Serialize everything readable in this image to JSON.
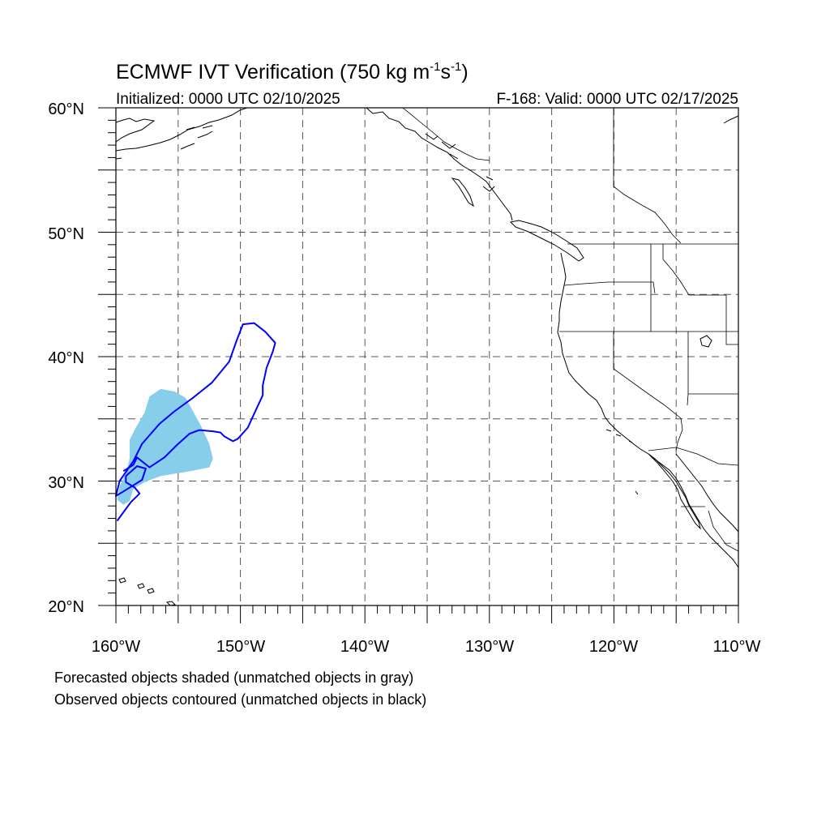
{
  "title": {
    "main": "ECMWF IVT Verification (750 kg m",
    "sup1": "-1",
    "s": "s",
    "sup2": "-1",
    "close": ")"
  },
  "subtitle": {
    "left": "Initialized: 0000 UTC 02/10/2025",
    "right": "F-168: Valid: 0000 UTC 02/17/2025"
  },
  "axes": {
    "lat_labels": [
      "60°N",
      "50°N",
      "40°N",
      "30°N",
      "20°N"
    ],
    "lon_labels": [
      "160°W",
      "150°W",
      "140°W",
      "130°W",
      "120°W",
      "110°W"
    ],
    "lat_range": [
      20,
      60
    ],
    "lon_range": [
      -160,
      -110
    ],
    "grid_spacing_deg": 5
  },
  "notes": {
    "line1": "Forecasted objects shaded (unmatched objects in gray)",
    "line2": "Observed objects contoured (unmatched objects in black)"
  },
  "colors": {
    "forecast_fill": "#87CEEB",
    "observed_contour": "#0000FF",
    "coastline": "#000000",
    "grid": "#555555"
  },
  "map_data": {
    "forecast_object": {
      "description_color": "forecast_fill",
      "lonlat": [
        [
          -158.9,
          33.3
        ],
        [
          -158.4,
          34.3
        ],
        [
          -157.7,
          35.5
        ],
        [
          -157.3,
          36.8
        ],
        [
          -156.4,
          37.4
        ],
        [
          -155.3,
          37.2
        ],
        [
          -154.4,
          36.7
        ],
        [
          -153.8,
          35.6
        ],
        [
          -153.2,
          34.5
        ],
        [
          -152.5,
          33.0
        ],
        [
          -152.2,
          31.8
        ],
        [
          -152.5,
          31.1
        ],
        [
          -154.0,
          30.8
        ],
        [
          -155.2,
          30.6
        ],
        [
          -156.4,
          30.4
        ],
        [
          -157.5,
          30.0
        ],
        [
          -158.6,
          29.4
        ],
        [
          -158.9,
          28.4
        ],
        [
          -159.4,
          28.1
        ],
        [
          -159.9,
          28.5
        ],
        [
          -159.7,
          29.6
        ],
        [
          -159.2,
          30.6
        ],
        [
          -158.9,
          31.8
        ]
      ]
    },
    "observed_object": {
      "description_color": "observed_contour",
      "lonlat": [
        [
          -159.9,
          26.8
        ],
        [
          -158.8,
          28.3
        ],
        [
          -158.1,
          29.0
        ],
        [
          -158.5,
          29.5
        ],
        [
          -159.2,
          29.9
        ],
        [
          -159.2,
          30.4
        ],
        [
          -158.3,
          31.2
        ],
        [
          -157.6,
          31.0
        ],
        [
          -157.9,
          30.1
        ],
        [
          -159.5,
          29.1
        ],
        [
          -160.0,
          28.8
        ],
        [
          -159.7,
          30.0
        ],
        [
          -158.6,
          31.6
        ],
        [
          -157.9,
          33.0
        ],
        [
          -156.5,
          34.6
        ],
        [
          -155.3,
          35.6
        ],
        [
          -153.8,
          36.7
        ],
        [
          -152.3,
          37.9
        ],
        [
          -150.9,
          39.6
        ],
        [
          -150.3,
          41.3
        ],
        [
          -149.8,
          42.6
        ],
        [
          -148.9,
          42.7
        ],
        [
          -148.0,
          42.0
        ],
        [
          -147.2,
          41.1
        ],
        [
          -147.4,
          40.4
        ],
        [
          -147.9,
          39.1
        ],
        [
          -148.2,
          37.7
        ],
        [
          -148.2,
          36.9
        ],
        [
          -148.9,
          35.4
        ],
        [
          -149.4,
          34.3
        ],
        [
          -150.2,
          33.4
        ],
        [
          -150.6,
          33.2
        ],
        [
          -151.3,
          33.6
        ],
        [
          -151.6,
          33.9
        ],
        [
          -152.2,
          34.0
        ],
        [
          -153.3,
          34.1
        ],
        [
          -154.1,
          33.8
        ],
        [
          -155.1,
          32.9
        ],
        [
          -156.1,
          31.9
        ],
        [
          -157.3,
          31.1
        ],
        [
          -158.3,
          31.9
        ],
        [
          -158.6,
          31.3
        ],
        [
          -159.4,
          30.8
        ]
      ]
    }
  }
}
